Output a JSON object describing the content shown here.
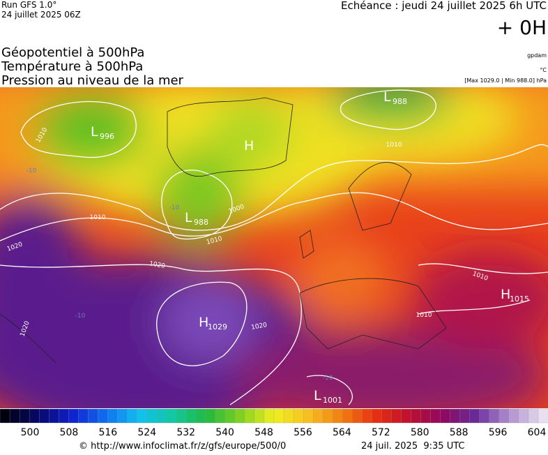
{
  "header": {
    "run": "Run GFS 1.0°",
    "run_date": "24 juillet 2025 06Z",
    "forecast": "Echéance : jeudi 24 juillet 2025 6h UTC",
    "lead": "+ 0H",
    "layers": [
      "Géopotentiel à 500hPa",
      "Température à 500hPa",
      "Pression au niveau de la mer"
    ],
    "units": [
      "gpdam",
      "°C",
      "[Max 1029.0 | Min 988.0] hPa"
    ]
  },
  "map": {
    "centers": [
      {
        "letter": "L",
        "value": 996
      },
      {
        "letter": "L",
        "value": 988
      },
      {
        "letter": "L",
        "value": 988
      },
      {
        "letter": "H"
      },
      {
        "letter": "H",
        "value": 1029
      },
      {
        "letter": "H",
        "value": 1015
      },
      {
        "letter": "L",
        "value": 1001
      }
    ],
    "isobar_labels": [
      1010,
      1010,
      1020,
      1020,
      1020,
      1020,
      1010,
      1000,
      1010,
      1010,
      1010
    ],
    "temperature_labels": [
      -10,
      -10,
      -10,
      -10
    ]
  },
  "colorbar": {
    "ticks": [
      500,
      508,
      516,
      524,
      532,
      540,
      548,
      556,
      564,
      572,
      580,
      588,
      596,
      604
    ]
  },
  "footer": {
    "source": "© http://www.infoclimat.fr/z/gfs/europe/500/0",
    "date": "24 juil. 2025  9:35 UTC"
  }
}
